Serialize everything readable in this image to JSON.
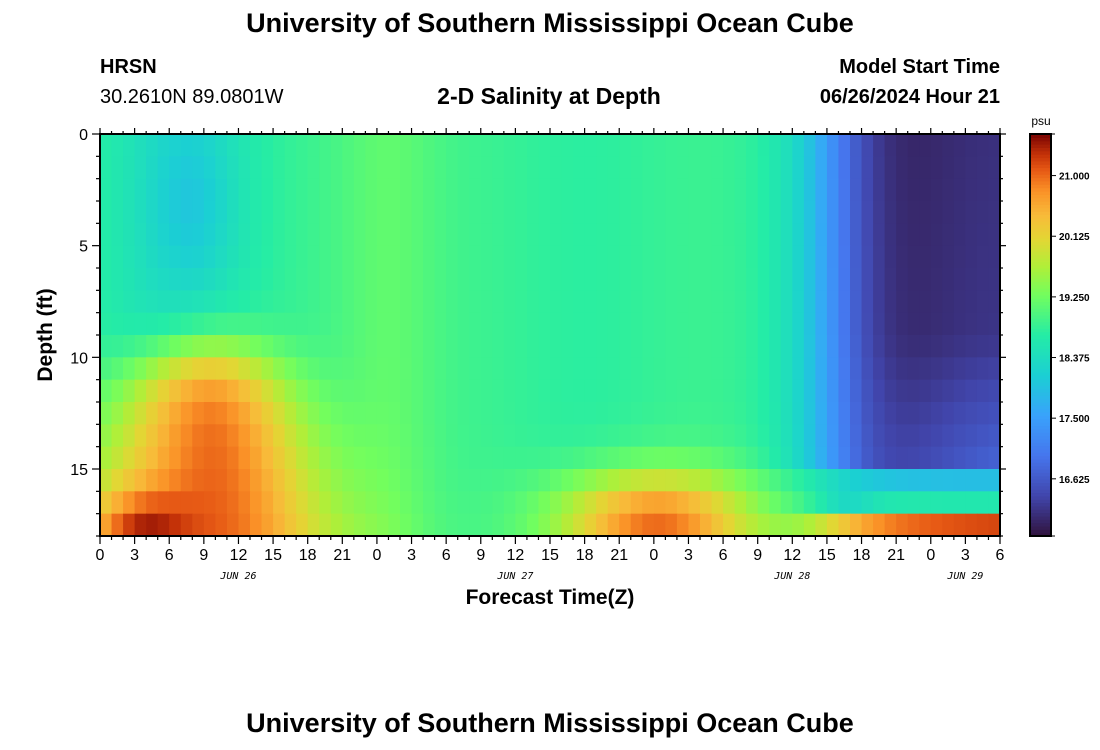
{
  "header": {
    "title": "University of Southern Mississippi Ocean Cube",
    "station_name": "HRSN",
    "station_coords": "30.2610N  89.0801W",
    "plot_title": "2-D Salinity at Depth",
    "start_label": "Model Start Time",
    "start_value": "06/26/2024 Hour 21"
  },
  "footer": {
    "title": "University of Southern Mississippi Ocean Cube"
  },
  "chart_data": {
    "type": "heatmap",
    "title": "2-D Salinity at Depth",
    "xlabel": "Forecast Time(Z)",
    "ylabel": "Depth (ft)",
    "x_range_hours": [
      0,
      78
    ],
    "y_range_ft": [
      0,
      18
    ],
    "x_ticks": [
      "0",
      "3",
      "6",
      "9",
      "12",
      "15",
      "18",
      "21",
      "0",
      "3",
      "6",
      "9",
      "12",
      "15",
      "18",
      "21",
      "0",
      "3",
      "6",
      "9",
      "12",
      "15",
      "18",
      "21",
      "0",
      "3",
      "6"
    ],
    "y_ticks": [
      "0",
      "5",
      "10",
      "15"
    ],
    "date_labels": [
      {
        "label": "JUN 26",
        "hour": 12
      },
      {
        "label": "JUN 27",
        "hour": 36
      },
      {
        "label": "JUN 28",
        "hour": 60
      },
      {
        "label": "JUN 29",
        "hour": 75
      }
    ],
    "colorbar": {
      "unit": "psu",
      "min": 15.8,
      "max": 21.6,
      "ticks": [
        "21.000",
        "20.125",
        "19.250",
        "18.375",
        "17.500",
        "16.625"
      ]
    },
    "colors": {
      "low": "#30123b",
      "high": "#7a0403",
      "frame": "#000000"
    },
    "description_fields": {
      "surface_ppt": "18.1 to 19.2 psu over hours 0-57, dropping to ~16 psu after hour 63",
      "bottom_ppt": "up to ~21.5 psu near hours 7-10 and 46-53"
    }
  }
}
